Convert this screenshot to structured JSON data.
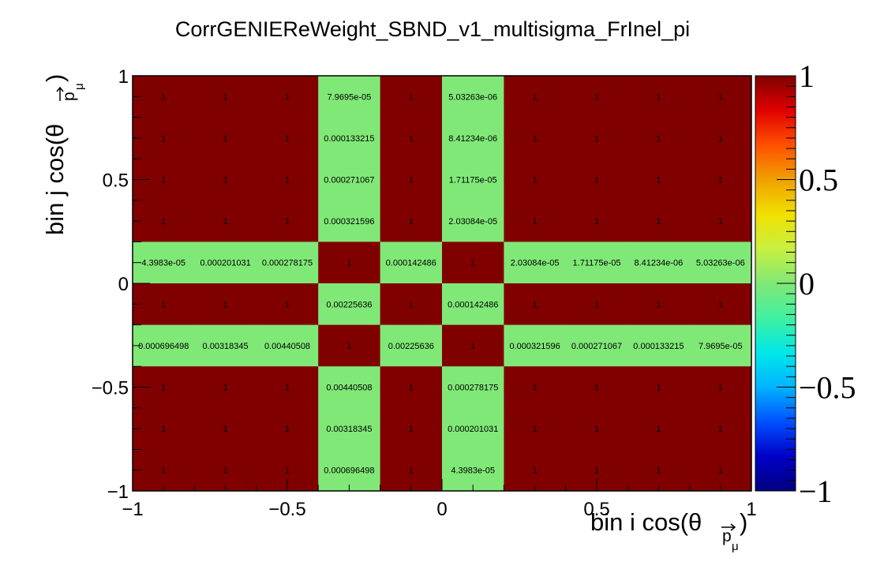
{
  "chart_data": {
    "type": "heatmap",
    "title": "CorrGENIEReWeight_SBND_v1_multisigma_FrInel_pi",
    "xlabel": "bin i cos(θ",
    "xlabel_sub_p": "p",
    "xlabel_sub_mu": "μ",
    "xlabel_close": ")",
    "ylabel": "bin j cos(θ",
    "ylabel_sub_p": "p",
    "ylabel_sub_mu": "μ",
    "ylabel_close": ")",
    "xlim": [
      -1,
      1
    ],
    "ylim": [
      -1,
      1
    ],
    "zlim": [
      -1,
      1
    ],
    "x_edges": [
      -1,
      -0.8,
      -0.6,
      -0.4,
      -0.2,
      0,
      0.2,
      0.4,
      0.6,
      0.8,
      1
    ],
    "y_edges": [
      -1,
      -0.8,
      -0.6,
      -0.4,
      -0.2,
      0,
      0.2,
      0.4,
      0.6,
      0.8,
      1
    ],
    "x_ticks": [
      {
        "value": -1,
        "label": "−1"
      },
      {
        "value": -0.5,
        "label": "−0.5"
      },
      {
        "value": 0,
        "label": "0"
      },
      {
        "value": 0.5,
        "label": "0.5"
      },
      {
        "value": 1,
        "label": "1"
      }
    ],
    "y_ticks": [
      {
        "value": -1,
        "label": "−1"
      },
      {
        "value": -0.5,
        "label": "−0.5"
      },
      {
        "value": 0,
        "label": "0"
      },
      {
        "value": 0.5,
        "label": "0.5"
      },
      {
        "value": 1,
        "label": "1"
      }
    ],
    "z_ticks": [
      {
        "value": -1,
        "label": "−1"
      },
      {
        "value": -0.5,
        "label": "−0.5"
      },
      {
        "value": 0,
        "label": "0"
      },
      {
        "value": 0.5,
        "label": "0.5"
      },
      {
        "value": 1,
        "label": "1"
      }
    ],
    "rows_top_to_bottom": [
      [
        "1",
        "1",
        "1",
        "7.9695e-05",
        "1",
        "5.03263e-06",
        "1",
        "1",
        "1",
        "1"
      ],
      [
        "1",
        "1",
        "1",
        "0.000133215",
        "1",
        "8.41234e-06",
        "1",
        "1",
        "1",
        "1"
      ],
      [
        "1",
        "1",
        "1",
        "0.000271067",
        "1",
        "1.71175e-05",
        "1",
        "1",
        "1",
        "1"
      ],
      [
        "1",
        "1",
        "1",
        "0.000321596",
        "1",
        "2.03084e-05",
        "1",
        "1",
        "1",
        "1"
      ],
      [
        "4.3983e-05",
        "0.000201031",
        "0.000278175",
        "1",
        "0.000142486",
        "1",
        "2.03084e-05",
        "1.71175e-05",
        "8.41234e-06",
        "5.03263e-06"
      ],
      [
        "1",
        "1",
        "1",
        "0.00225636",
        "1",
        "0.000142486",
        "1",
        "1",
        "1",
        "1"
      ],
      [
        "0.000696498",
        "0.00318345",
        "0.00440508",
        "1",
        "0.00225636",
        "1",
        "0.000321596",
        "0.000271067",
        "0.000133215",
        "7.9695e-05"
      ],
      [
        "1",
        "1",
        "1",
        "0.00440508",
        "1",
        "0.000278175",
        "1",
        "1",
        "1",
        "1"
      ],
      [
        "1",
        "1",
        "1",
        "0.00318345",
        "1",
        "0.000201031",
        "1",
        "1",
        "1",
        "1"
      ],
      [
        "1",
        "1",
        "1",
        "0.000696498",
        "1",
        "4.3983e-05",
        "1",
        "1",
        "1",
        "1"
      ]
    ],
    "colors": {
      "high": "#800000",
      "near_zero": "#80e877",
      "axis": "#000000"
    },
    "palette": [
      "#000080",
      "#0000c8",
      "#0050ff",
      "#00b4ff",
      "#00e8e8",
      "#40f0a0",
      "#80e877",
      "#c8f040",
      "#f0e000",
      "#f0a000",
      "#ff5000",
      "#e00000",
      "#800000"
    ]
  }
}
